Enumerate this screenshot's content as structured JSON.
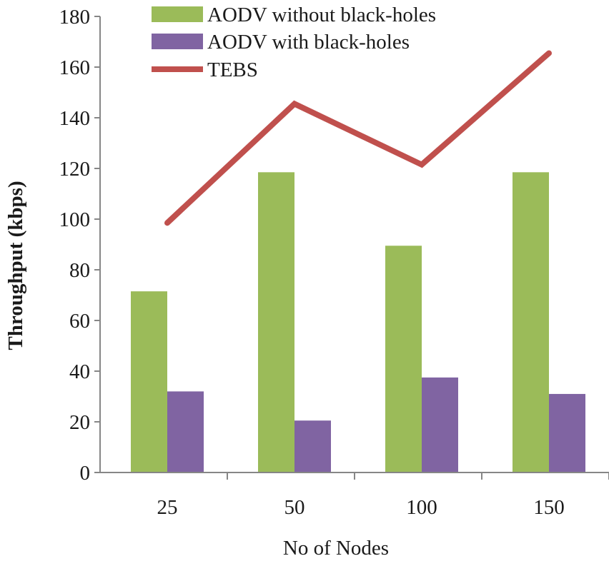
{
  "chart_data": {
    "type": "bar",
    "title": "",
    "xlabel": "No of Nodes",
    "ylabel": "Throughput (kbps)",
    "ylim": [
      0,
      180
    ],
    "yticks": [
      0,
      20,
      40,
      60,
      80,
      100,
      120,
      140,
      160,
      180
    ],
    "ytick_labels": [
      "0",
      "20",
      "40",
      "60",
      "80",
      "100",
      "120",
      "140",
      "160",
      "180"
    ],
    "categories": [
      "25",
      "50",
      "100",
      "150"
    ],
    "grid": false,
    "legend_position": "top",
    "series": [
      {
        "name": "AODV without black-holes",
        "kind": "bar",
        "color": "#9bbb59",
        "values": [
          71.5,
          118.5,
          89.5,
          118.5
        ]
      },
      {
        "name": "AODV with black-holes",
        "kind": "bar",
        "color": "#8064a2",
        "values": [
          32,
          20.5,
          37.5,
          31
        ]
      },
      {
        "name": "TEBS",
        "kind": "line",
        "color": "#c0504d",
        "values": [
          98.5,
          145.5,
          121.5,
          165.5
        ]
      }
    ]
  }
}
